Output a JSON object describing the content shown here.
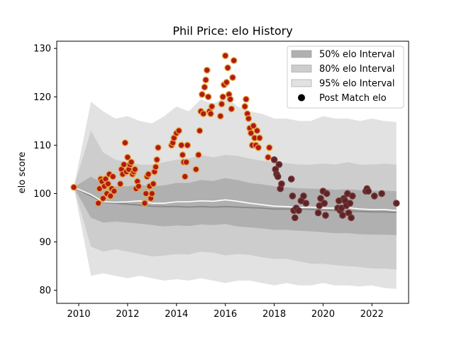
{
  "chart_data": {
    "type": "scatter",
    "title": "Phil Price: elo History",
    "xlabel": "",
    "ylabel": "elo score",
    "xlim": [
      2009.1,
      2023.5
    ],
    "ylim": [
      77.3,
      131.5
    ],
    "x_ticks": [
      2010,
      2012,
      2014,
      2016,
      2018,
      2020,
      2022
    ],
    "y_ticks": [
      80,
      90,
      100,
      110,
      120,
      130
    ],
    "grid": false,
    "legend_position": "top-right",
    "legend": [
      {
        "label": "50% elo Interval",
        "color": "#b0b0b0",
        "kind": "band"
      },
      {
        "label": "80% elo Interval",
        "color": "#cdcdcd",
        "kind": "band"
      },
      {
        "label": "95% elo Interval",
        "color": "#e2e2e2",
        "kind": "band"
      },
      {
        "label": "Post Match elo",
        "color": "#000000",
        "kind": "marker"
      }
    ],
    "band_x": [
      2009.8,
      2010.5,
      2011.0,
      2011.5,
      2012.0,
      2012.5,
      2013.0,
      2013.5,
      2014.0,
      2014.5,
      2015.0,
      2015.5,
      2016.0,
      2016.5,
      2017.0,
      2017.5,
      2018.0,
      2018.5,
      2019.0,
      2019.5,
      2020.0,
      2020.5,
      2021.0,
      2021.5,
      2022.0,
      2022.5,
      2023.0
    ],
    "median_line": [
      101.3,
      99.5,
      98.2,
      98.0,
      97.8,
      97.6,
      97.4,
      97.3,
      97.3,
      97.2,
      97.3,
      97.2,
      97.3,
      97.2,
      97.1,
      97.0,
      96.8,
      96.8,
      96.8,
      96.7,
      96.6,
      96.5,
      96.4,
      96.3,
      96.2,
      96.2,
      96.1
    ],
    "mean_line": [
      101.3,
      99.8,
      98.3,
      98.2,
      98.3,
      98.5,
      98.0,
      98.0,
      98.3,
      98.3,
      98.5,
      98.4,
      98.7,
      98.4,
      98.0,
      97.7,
      97.4,
      97.3,
      97.1,
      97.2,
      97.0,
      97.0,
      97.1,
      96.8,
      96.7,
      96.7,
      96.5
    ],
    "band_50": {
      "lower": [
        101.3,
        95.0,
        94.0,
        94.2,
        94.0,
        93.8,
        93.5,
        93.2,
        93.4,
        93.3,
        93.6,
        93.5,
        93.7,
        93.2,
        93.0,
        92.8,
        92.5,
        92.5,
        92.3,
        92.2,
        92.0,
        91.8,
        91.8,
        91.6,
        91.5,
        91.5,
        91.4
      ],
      "upper": [
        101.3,
        103.5,
        102.0,
        101.5,
        101.5,
        101.8,
        101.5,
        101.7,
        102.2,
        102.2,
        102.8,
        102.6,
        103.2,
        102.8,
        102.2,
        101.9,
        101.5,
        101.3,
        101.1,
        101.0,
        101.0,
        100.8,
        100.9,
        100.7,
        100.6,
        100.6,
        100.5
      ]
    },
    "band_80": {
      "lower": [
        101.3,
        89.0,
        88.0,
        88.5,
        88.0,
        87.5,
        87.0,
        87.2,
        87.5,
        87.4,
        88.0,
        87.8,
        87.2,
        87.5,
        87.3,
        86.8,
        86.5,
        86.5,
        86.0,
        85.5,
        85.5,
        85.2,
        85.0,
        84.8,
        84.5,
        84.5,
        84.3
      ],
      "upper": [
        101.3,
        113.0,
        108.5,
        107.0,
        106.5,
        106.0,
        106.0,
        106.5,
        107.0,
        107.2,
        108.0,
        107.5,
        108.0,
        107.8,
        107.2,
        106.8,
        106.5,
        106.3,
        106.0,
        106.0,
        106.2,
        106.0,
        106.5,
        106.0,
        106.0,
        106.2,
        106.0
      ]
    },
    "band_95": {
      "lower": [
        101.3,
        83.0,
        83.5,
        83.0,
        82.5,
        83.0,
        82.5,
        82.0,
        82.3,
        82.0,
        82.5,
        82.0,
        81.5,
        82.0,
        82.0,
        81.5,
        81.0,
        81.5,
        81.0,
        81.0,
        81.5,
        81.0,
        81.0,
        80.8,
        81.0,
        80.5,
        80.3
      ],
      "upper": [
        101.3,
        119.0,
        117.0,
        115.5,
        116.0,
        115.0,
        114.5,
        116.0,
        118.0,
        117.0,
        119.5,
        118.5,
        120.0,
        118.0,
        117.0,
        116.5,
        115.5,
        115.5,
        115.0,
        115.0,
        116.0,
        115.5,
        115.5,
        115.0,
        115.5,
        115.0,
        114.8
      ]
    },
    "series": [
      {
        "name": "Post Match elo",
        "x": [
          2009.8,
          2010.8,
          2010.85,
          2010.9,
          2010.95,
          2011.0,
          2011.05,
          2011.1,
          2011.15,
          2011.2,
          2011.25,
          2011.3,
          2011.35,
          2011.4,
          2011.45,
          2011.7,
          2011.75,
          2011.8,
          2011.85,
          2011.9,
          2011.95,
          2012.0,
          2012.05,
          2012.1,
          2012.15,
          2012.2,
          2012.25,
          2012.3,
          2012.35,
          2012.4,
          2012.45,
          2012.7,
          2012.75,
          2012.8,
          2012.85,
          2012.9,
          2012.95,
          2013.0,
          2013.05,
          2013.1,
          2013.15,
          2013.2,
          2013.25,
          2013.8,
          2013.85,
          2013.9,
          2014.0,
          2014.1,
          2014.2,
          2014.25,
          2014.3,
          2014.35,
          2014.4,
          2014.45,
          2014.8,
          2014.9,
          2014.95,
          2015.0,
          2015.05,
          2015.1,
          2015.15,
          2015.2,
          2015.25,
          2015.3,
          2015.35,
          2015.4,
          2015.45,
          2015.8,
          2015.85,
          2015.9,
          2015.95,
          2016.0,
          2016.05,
          2016.1,
          2016.15,
          2016.2,
          2016.25,
          2016.3,
          2016.35,
          2016.8,
          2016.85,
          2016.9,
          2016.95,
          2017.0,
          2017.05,
          2017.1,
          2017.15,
          2017.2,
          2017.25,
          2017.3,
          2017.35,
          2017.4,
          2017.75,
          2017.8,
          2018.0,
          2018.05,
          2018.1,
          2018.15,
          2018.2,
          2018.25,
          2018.3,
          2018.7,
          2018.75,
          2018.8,
          2018.85,
          2018.9,
          2019.0,
          2019.1,
          2019.2,
          2019.3,
          2019.8,
          2019.85,
          2019.9,
          2020.0,
          2020.05,
          2020.1,
          2020.15,
          2020.6,
          2020.65,
          2020.7,
          2020.75,
          2020.8,
          2020.85,
          2020.9,
          2020.95,
          2021.0,
          2021.05,
          2021.1,
          2021.15,
          2021.2,
          2021.75,
          2021.8,
          2021.85,
          2022.1,
          2022.4,
          2023.0
        ],
        "y": [
          101.3,
          98.0,
          101.0,
          103.0,
          102.5,
          99.0,
          101.5,
          103.0,
          100.0,
          102.0,
          104.0,
          99.5,
          101.0,
          103.5,
          100.5,
          102.0,
          105.0,
          104.0,
          106.0,
          110.5,
          104.5,
          107.5,
          105.0,
          106.0,
          106.5,
          104.0,
          104.5,
          105.0,
          101.0,
          102.5,
          101.5,
          98.0,
          100.0,
          103.5,
          104.0,
          101.5,
          99.0,
          100.0,
          102.0,
          104.5,
          105.5,
          107.0,
          109.5,
          110.0,
          110.5,
          111.5,
          112.5,
          113.0,
          110.0,
          108.0,
          106.5,
          103.5,
          106.5,
          110.0,
          105.0,
          108.0,
          113.0,
          117.0,
          120.5,
          116.5,
          122.0,
          123.5,
          125.5,
          120.0,
          117.0,
          116.5,
          118.0,
          116.0,
          118.5,
          120.0,
          122.5,
          128.5,
          123.0,
          126.0,
          120.5,
          119.5,
          117.5,
          124.0,
          127.5,
          118.0,
          119.5,
          116.5,
          115.5,
          113.5,
          112.5,
          110.0,
          114.0,
          111.5,
          110.0,
          113.0,
          109.5,
          111.5,
          107.5,
          109.5,
          107.0,
          105.0,
          104.0,
          103.5,
          106.0,
          101.0,
          102.0,
          103.0,
          99.5,
          96.5,
          95.0,
          97.0,
          96.5,
          98.5,
          99.5,
          98.0,
          96.0,
          97.5,
          99.0,
          100.5,
          98.0,
          95.5,
          100.0,
          97.0,
          98.5,
          96.5,
          97.0,
          95.5,
          99.0,
          98.5,
          97.5,
          100.0,
          96.0,
          98.0,
          95.0,
          99.5,
          100.5,
          101.0,
          100.5,
          99.5,
          100.0,
          98.0
        ]
      }
    ]
  }
}
